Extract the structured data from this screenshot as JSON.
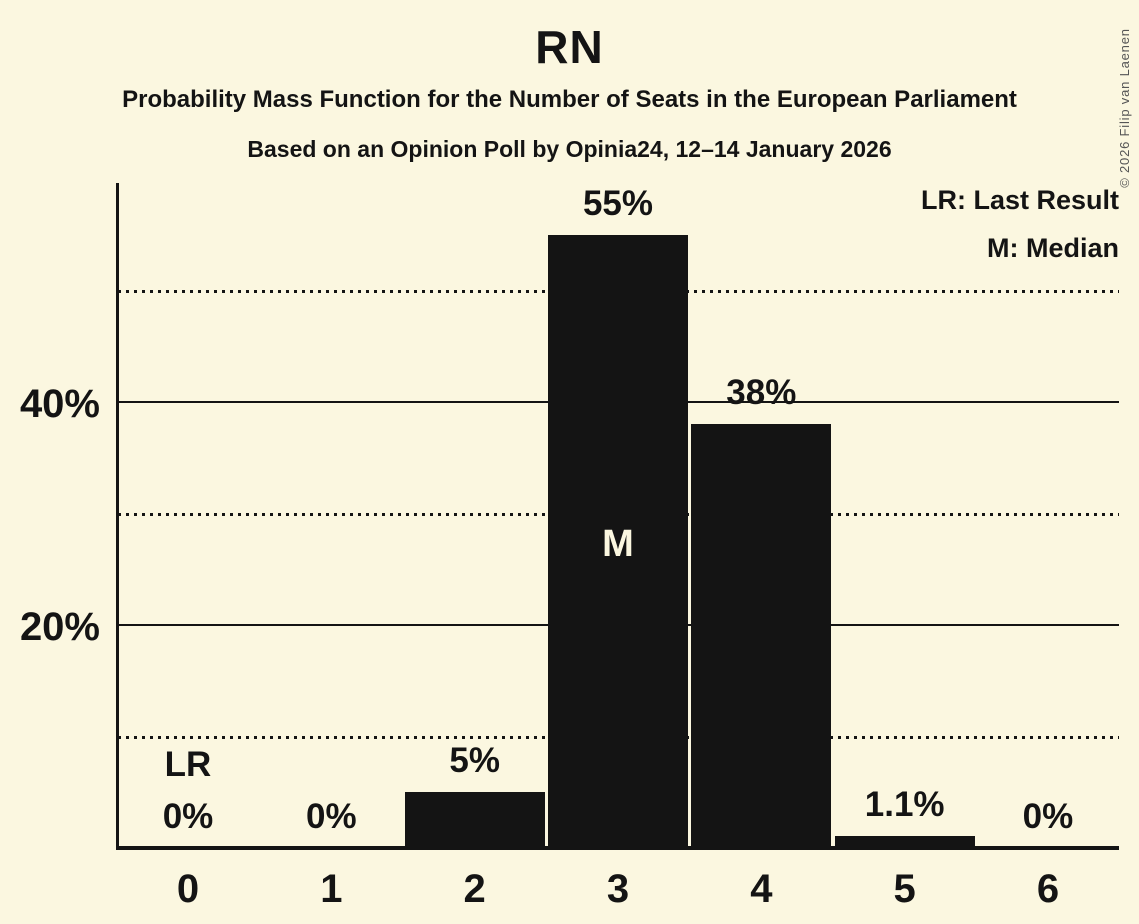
{
  "title": "RN",
  "subtitle": "Probability Mass Function for the Number of Seats in the European Parliament",
  "source_line": "Based on an Opinion Poll by Opinia24, 12–14 January 2026",
  "copyright": "© 2026 Filip van Laenen",
  "legend": {
    "lr": "LR: Last Result",
    "m": "M: Median"
  },
  "y_axis": {
    "labels": [
      {
        "text": "40%",
        "value": 40
      },
      {
        "text": "20%",
        "value": 20
      }
    ]
  },
  "chart_data": {
    "type": "bar",
    "title": "RN",
    "categories": [
      "0",
      "1",
      "2",
      "3",
      "4",
      "5",
      "6"
    ],
    "values": [
      0,
      0,
      5,
      55,
      38,
      1.1,
      0
    ],
    "bar_labels": [
      "0%",
      "0%",
      "5%",
      "55%",
      "38%",
      "1.1%",
      "0%"
    ],
    "ylim": [
      0,
      60
    ],
    "y_gridlines_solid": [
      20,
      40
    ],
    "y_gridlines_dotted": [
      10,
      30,
      50
    ],
    "legend_position": "top-right",
    "grid": "horizontal-only",
    "annotations": [
      {
        "category": "0",
        "label": "LR",
        "placement": "above-bar-label"
      },
      {
        "category": "3",
        "label": "M",
        "placement": "inside-bar"
      }
    ]
  },
  "colors": {
    "background": "#fbf7e0",
    "bar": "#141414",
    "text": "#141414",
    "median_label": "#fbf7e0",
    "copyright_text": "#555555"
  }
}
